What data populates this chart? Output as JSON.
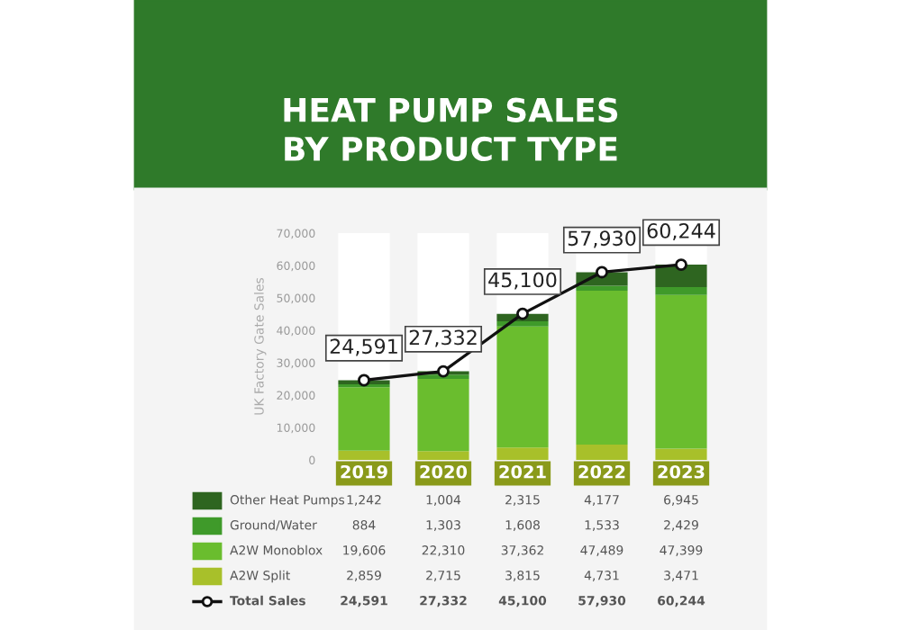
{
  "chart_data": {
    "type": "bar",
    "stacked": true,
    "title": "HEAT PUMP SALES\nBY PRODUCT TYPE",
    "ylabel": "UK Factory Gate Sales",
    "categories": [
      "2019",
      "2020",
      "2021",
      "2022",
      "2023"
    ],
    "series": [
      {
        "name": "A2W Split",
        "color": "#a8c02a",
        "values": [
          2859,
          2715,
          3815,
          4731,
          3471
        ],
        "value_labels": [
          "2,859",
          "2,715",
          "3,815",
          "4,731",
          "3,471"
        ]
      },
      {
        "name": "A2W Monoblox",
        "color": "#6abd2e",
        "values": [
          19606,
          22310,
          37362,
          47489,
          47399
        ],
        "value_labels": [
          "19,606",
          "22,310",
          "37,362",
          "47,489",
          "47,399"
        ]
      },
      {
        "name": "Ground/Water",
        "color": "#3f9a2a",
        "values": [
          884,
          1303,
          1608,
          1533,
          2429
        ],
        "value_labels": [
          "884",
          "1,303",
          "1,608",
          "1,533",
          "2,429"
        ]
      },
      {
        "name": "Other Heat Pumps",
        "color": "#2e6520",
        "values": [
          1242,
          1004,
          2315,
          4177,
          6945
        ],
        "value_labels": [
          "1,242",
          "1,004",
          "2,315",
          "4,177",
          "6,945"
        ]
      },
      {
        "name": "Total Sales",
        "type": "line",
        "color": "#111111",
        "marker": "circle",
        "values": [
          24591,
          27332,
          45100,
          57930,
          60244
        ],
        "value_labels": [
          "24,591",
          "27,332",
          "45,100",
          "57,930",
          "60,244"
        ]
      }
    ],
    "ylim": [
      0,
      70000
    ],
    "yticks": [
      {
        "value": 0,
        "label": "0"
      },
      {
        "value": 10000,
        "label": "10,000"
      },
      {
        "value": 20000,
        "label": "20,000"
      },
      {
        "value": 30000,
        "label": "30,000"
      },
      {
        "value": 40000,
        "label": "40,000"
      },
      {
        "value": 50000,
        "label": "50,000"
      },
      {
        "value": 60000,
        "label": "60,000"
      },
      {
        "value": 70000,
        "label": "70,000"
      }
    ],
    "grid": false,
    "legend": "bottom"
  }
}
